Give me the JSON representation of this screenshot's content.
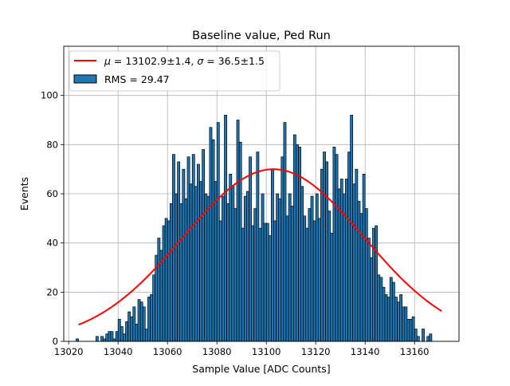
{
  "chart_data": {
    "type": "bar",
    "title": "Baseline value, Ped Run",
    "xlabel": "Sample Value [ADC Counts]",
    "ylabel": "Events",
    "xlim": [
      13018,
      13178
    ],
    "ylim": [
      0,
      120
    ],
    "xticks": [
      "13020",
      "13040",
      "13060",
      "13080",
      "13100",
      "13120",
      "13140",
      "13160"
    ],
    "yticks": [
      "0",
      "20",
      "40",
      "60",
      "80",
      "100"
    ],
    "grid": true,
    "legend_position": "top-left",
    "bin_start": 13023,
    "bin_width": 1,
    "histogram": {
      "name": "RMS = 29.47",
      "color": "#1f77b4",
      "edge_color": "#000000",
      "counts": [
        1,
        0,
        0,
        0,
        0,
        0,
        0,
        0,
        2,
        0,
        2,
        1,
        3,
        4,
        4,
        1,
        4,
        9,
        6,
        3,
        8,
        12,
        10,
        14,
        7,
        17,
        16,
        14,
        5,
        18,
        19,
        27,
        35,
        42,
        37,
        47,
        50,
        49,
        56,
        76,
        60,
        73,
        56,
        70,
        58,
        75,
        64,
        76,
        63,
        72,
        65,
        78,
        60,
        59,
        87,
        82,
        65,
        89,
        49,
        59,
        92,
        56,
        68,
        63,
        54,
        90,
        81,
        46,
        59,
        61,
        75,
        47,
        54,
        77,
        46,
        60,
        48,
        48,
        43,
        70,
        49,
        60,
        58,
        75,
        89,
        51,
        60,
        55,
        84,
        80,
        79,
        63,
        51,
        46,
        54,
        59,
        49,
        60,
        50,
        70,
        77,
        73,
        53,
        44,
        79,
        76,
        62,
        66,
        60,
        66,
        77,
        92,
        64,
        70,
        57,
        52,
        68,
        54,
        42,
        34,
        46,
        47,
        27,
        26,
        22,
        19,
        18,
        26,
        24,
        18,
        16,
        19,
        14,
        14,
        9,
        9,
        10,
        5,
        2,
        0,
        5,
        0,
        2,
        3
      ],
      "raw_counts_note_hidden": ""
    },
    "fit": {
      "name": "$\\mu = 13102.9 \\pm 1.4$, $\\sigma = 36.5 \\pm 1.5$",
      "label_parts": [
        "μ",
        " = 13102.9±1.4, ",
        "σ",
        " = 36.5±1.5"
      ],
      "color": "#ff0000",
      "mu": 13102.9,
      "sigma": 36.5,
      "amplitude": 70,
      "x_range": [
        13024,
        13171
      ]
    },
    "legend": {
      "fit_label_mu": "μ",
      "fit_label_mid": " = 13102.9±1.4, ",
      "fit_label_sigma": "σ",
      "fit_label_end": " = 36.5±1.5",
      "hist_label": "RMS = 29.47"
    }
  }
}
